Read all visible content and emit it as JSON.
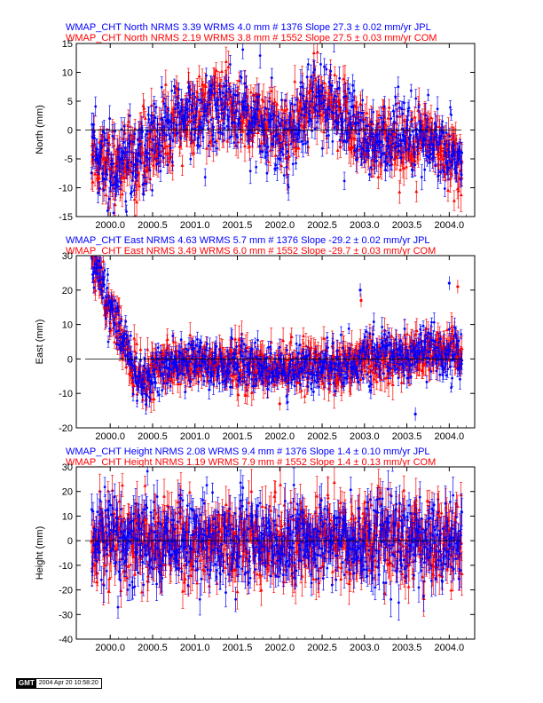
{
  "chart_data": [
    {
      "type": "scatter",
      "title_lines": [
        {
          "color": "#0000ff",
          "text": "WMAP_CHT North NRMS 3.39 WRMS  4.0 mm # 1376 Slope   27.3 ±  0.02 mm/yr JPL"
        },
        {
          "color": "#ff0000",
          "text": "WMAP_CHT North NRMS 2.19 WRMS  3.8 mm # 1552 Slope   27.5 ±  0.03 mm/yr COM"
        }
      ],
      "ylabel": "North (mm)",
      "xlim": [
        1999.6,
        2004.3
      ],
      "ylim": [
        -15,
        15
      ],
      "xticks": [
        "2000.0",
        "2000.5",
        "2001.0",
        "2001.5",
        "2002.0",
        "2002.5",
        "2003.0",
        "2003.5",
        "2004.0"
      ],
      "yticks": [
        "-15",
        "-10",
        "-5",
        "0",
        "5",
        "10",
        "15"
      ],
      "grid": false,
      "series": [
        {
          "name": "JPL",
          "color": "#0000ff",
          "marker": "dot",
          "count": 1376,
          "nrms": 3.39,
          "wrms_mm": 4.0,
          "slope_mm_yr": 27.3,
          "slope_sigma": 0.02,
          "x_range": [
            1999.78,
            2004.15
          ],
          "typical_errorbar_mm": 1.5
        },
        {
          "name": "COM",
          "color": "#ff0000",
          "marker": "triangle",
          "count": 1552,
          "nrms": 2.19,
          "wrms_mm": 3.8,
          "slope_mm_yr": 27.5,
          "slope_sigma": 0.03,
          "x_range": [
            1999.78,
            2004.15
          ],
          "typical_errorbar_mm": 2.0
        }
      ],
      "trend": [
        {
          "x": [
            1999.8,
            2000.0,
            2000.3,
            2000.6,
            2000.9,
            2001.2,
            2001.5,
            2001.8,
            2002.1,
            2002.4,
            2002.7,
            2003.0,
            2003.3,
            2003.6,
            2003.9,
            2004.15
          ],
          "y": [
            -4,
            -6,
            -5,
            -1,
            2,
            4,
            3,
            1,
            -1,
            5,
            3,
            -1,
            -2,
            -2,
            -2,
            -6
          ]
        }
      ],
      "scatter_mm": 3.5
    },
    {
      "type": "scatter",
      "title_lines": [
        {
          "color": "#0000ff",
          "text": "WMAP_CHT East NRMS 4.63 WRMS  5.7 mm # 1376 Slope  -29.2 ±  0.02 mm/yr JPL"
        },
        {
          "color": "#ff0000",
          "text": "WMAP_CHT East NRMS 3.49 WRMS  6.0 mm # 1552 Slope  -29.7 ±  0.03 mm/yr COM"
        }
      ],
      "ylabel": "East (mm)",
      "xlim": [
        1999.6,
        2004.3
      ],
      "ylim": [
        -20,
        30
      ],
      "xticks": [
        "2000.0",
        "2000.5",
        "2001.0",
        "2001.5",
        "2002.0",
        "2002.5",
        "2003.0",
        "2003.5",
        "2004.0"
      ],
      "yticks": [
        "-20",
        "-10",
        "0",
        "10",
        "20",
        "30"
      ],
      "grid": false,
      "series": [
        {
          "name": "JPL",
          "color": "#0000ff",
          "marker": "dot",
          "count": 1376,
          "nrms": 4.63,
          "wrms_mm": 5.7,
          "slope_mm_yr": -29.2,
          "slope_sigma": 0.02,
          "x_range": [
            1999.78,
            2004.15
          ],
          "typical_errorbar_mm": 2.0
        },
        {
          "name": "COM",
          "color": "#ff0000",
          "marker": "triangle",
          "count": 1552,
          "nrms": 3.49,
          "wrms_mm": 6.0,
          "slope_mm_yr": -29.7,
          "slope_sigma": 0.03,
          "x_range": [
            1999.78,
            2004.15
          ],
          "typical_errorbar_mm": 3.0
        }
      ],
      "trend": [
        {
          "x": [
            1999.8,
            1999.9,
            2000.0,
            2000.1,
            2000.2,
            2000.3,
            2000.4,
            2000.6,
            2001.0,
            2001.5,
            2002.0,
            2002.5,
            2003.0,
            2003.5,
            2004.0,
            2004.15
          ],
          "y": [
            27,
            22,
            14,
            8,
            2,
            -4,
            -6,
            -2,
            -1,
            -2,
            -3,
            -2,
            0,
            1,
            2,
            1
          ]
        }
      ],
      "scatter_mm": 3.5,
      "outliers": [
        {
          "x": 2002.95,
          "y": 20
        },
        {
          "x": 2002.96,
          "y": 17
        },
        {
          "x": 2004.0,
          "y": 22
        },
        {
          "x": 2004.1,
          "y": 21
        },
        {
          "x": 2003.6,
          "y": -16
        },
        {
          "x": 2002.0,
          "y": -13
        }
      ]
    },
    {
      "type": "scatter",
      "title_lines": [
        {
          "color": "#0000ff",
          "text": "WMAP_CHT Height NRMS 2.08 WRMS  9.4 mm # 1376 Slope    1.4 ±  0.10 mm/yr JPL"
        },
        {
          "color": "#ff0000",
          "text": "WMAP_CHT Height NRMS 1.19 WRMS  7.9 mm # 1552 Slope    1.4 ±  0.13 mm/yr COM"
        }
      ],
      "ylabel": "Height (mm)",
      "xlim": [
        1999.6,
        2004.3
      ],
      "ylim": [
        -40,
        30
      ],
      "xticks": [
        "2000.0",
        "2000.5",
        "2001.0",
        "2001.5",
        "2002.0",
        "2002.5",
        "2003.0",
        "2003.5",
        "2004.0"
      ],
      "yticks": [
        "-40",
        "-30",
        "-20",
        "-10",
        "0",
        "10",
        "20",
        "30"
      ],
      "grid": false,
      "series": [
        {
          "name": "JPL",
          "color": "#0000ff",
          "marker": "dot",
          "count": 1376,
          "nrms": 2.08,
          "wrms_mm": 9.4,
          "slope_mm_yr": 1.4,
          "slope_sigma": 0.1,
          "x_range": [
            1999.78,
            2004.15
          ],
          "typical_errorbar_mm": 5.0
        },
        {
          "name": "COM",
          "color": "#ff0000",
          "marker": "triangle",
          "count": 1552,
          "nrms": 1.19,
          "wrms_mm": 7.9,
          "slope_mm_yr": 1.4,
          "slope_sigma": 0.13,
          "x_range": [
            1999.78,
            2004.15
          ],
          "typical_errorbar_mm": 6.0
        }
      ],
      "trend": [
        {
          "x": [
            1999.8,
            2004.15
          ],
          "y": [
            0,
            0
          ]
        }
      ],
      "scatter_mm": 9.0
    }
  ],
  "footer": {
    "logo": "GMT",
    "date": "2004 Apr 20 10:58:20"
  }
}
